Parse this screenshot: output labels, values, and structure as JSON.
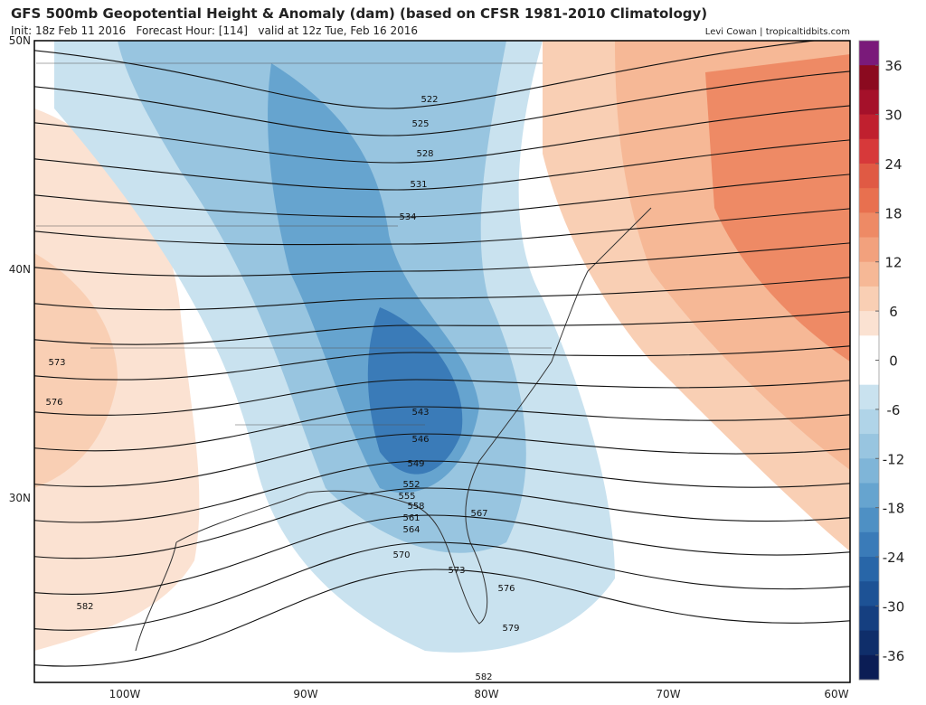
{
  "header": {
    "title": "GFS 500mb Geopotential Height & Anomaly (dam) (based on CFSR 1981-2010 Climatology)",
    "subtitle": "Init: 18z Feb 11 2016   Forecast Hour: [114]   valid at 12z Tue, Feb 16 2016",
    "credit": "Levi Cowan | tropicaltidbits.com"
  },
  "map": {
    "lat_labels": [
      "50N",
      "40N",
      "30N"
    ],
    "lon_labels": [
      "100W",
      "90W",
      "80W",
      "70W",
      "60W"
    ],
    "contour_labels": [
      522,
      525,
      528,
      531,
      534,
      543,
      546,
      549,
      552,
      555,
      558,
      561,
      564,
      567,
      570,
      573,
      576,
      579,
      582,
      573,
      576,
      582
    ]
  },
  "colorbar": {
    "lim": [
      -39,
      39
    ],
    "ticks": [
      36,
      30,
      24,
      18,
      12,
      6,
      0,
      -6,
      -12,
      -18,
      -24,
      -30,
      -36
    ],
    "colors": [
      "#7a1a7a",
      "#8b0a1f",
      "#a5112a",
      "#c0202f",
      "#d7393a",
      "#e05a44",
      "#e8704f",
      "#ee8a65",
      "#f2a17d",
      "#f6b896",
      "#f9cfb4",
      "#fbe2d2",
      "#ffffff",
      "#ffffff",
      "#c9e2ef",
      "#b0d4e8",
      "#98c5e0",
      "#7fb5d8",
      "#66a4cf",
      "#4e90c4",
      "#3a7bb8",
      "#2866a8",
      "#1d5295",
      "#153f80",
      "#0f2e6a",
      "#0b1d55"
    ]
  }
}
